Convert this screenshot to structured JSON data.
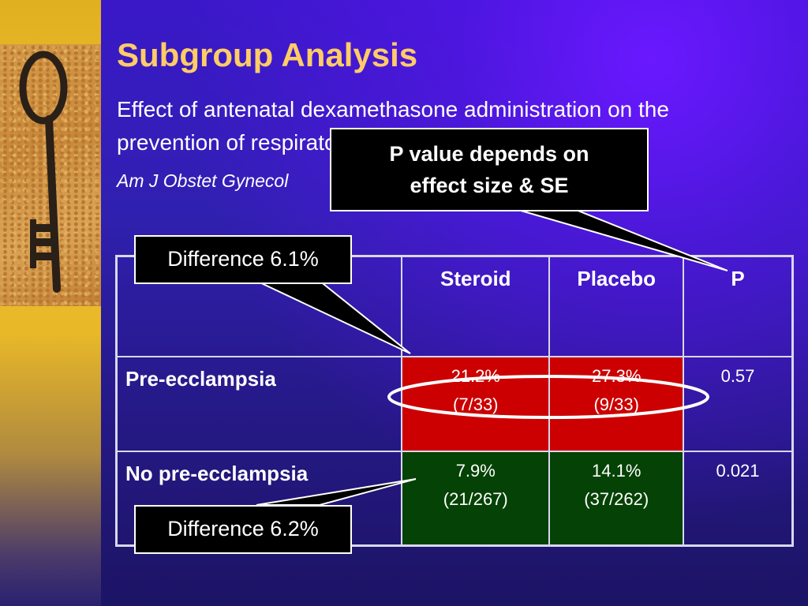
{
  "slide": {
    "title": "Subgroup Analysis",
    "subtitle": "Effect of antenatal dexamethasone administration on the prevention of respiratory distress syndrome.",
    "citation": "Am J Obstet Gynecol"
  },
  "table": {
    "headers": [
      "",
      "Steroid",
      "Placebo",
      "P"
    ],
    "rows": [
      {
        "label": "Pre-ecclampsia",
        "steroid_pct": "21.2%",
        "steroid_n": "(7/33)",
        "placebo_pct": "27.3%",
        "placebo_n": "(9/33)",
        "p": "0.57"
      },
      {
        "label": "No pre-ecclampsia",
        "steroid_pct": "7.9%",
        "steroid_n": "(21/267)",
        "placebo_pct": "14.1%",
        "placebo_n": "(37/262)",
        "p": "0.021"
      }
    ]
  },
  "callouts": {
    "difference_1": "Difference 6.1%",
    "difference_2": "Difference 6.2%",
    "p_value_line1": "P value depends on",
    "p_value_line2": "effect size & SE"
  },
  "colors": {
    "title": "#ffcc66",
    "highlight_red": "#cc0000",
    "highlight_green": "#054205",
    "background_blue": "#3020b0"
  },
  "decorations": {
    "image": "antique-key-photo"
  }
}
